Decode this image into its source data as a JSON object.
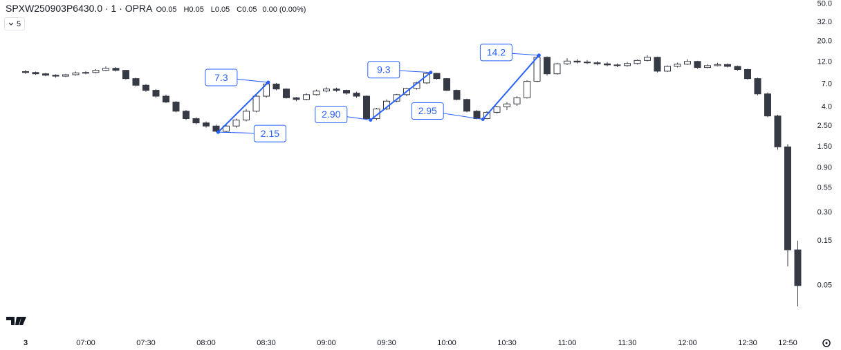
{
  "header": {
    "symbol": "SPXW250903P6430.0 · 1 · OPRA",
    "ohlc_labels": [
      "O",
      "H",
      "L",
      "C"
    ],
    "ohlc": [
      0.05,
      0.05,
      0.05,
      0.05
    ],
    "change": "0.00 (0.00%)",
    "interval": 5
  },
  "chart_data": {
    "type": "candlestick",
    "log_scale": true,
    "up_color": "#ffffff",
    "down_color": "#363a45",
    "edge_color": "#363a45",
    "annotation_color": "#2962ff",
    "xlim": [
      "06:30",
      "13:00"
    ],
    "ylim": [
      0.016,
      55
    ],
    "xticks": [
      {
        "value": "06:30",
        "label": "3"
      },
      "07:00",
      "07:30",
      "08:00",
      "08:30",
      "09:00",
      "09:30",
      "10:00",
      "10:30",
      "11:00",
      "11:30",
      "12:00",
      "12:30",
      "12:50"
    ],
    "yticks": [
      {
        "value": 50,
        "label": "50.0"
      },
      {
        "value": 32,
        "label": "32.0"
      },
      {
        "value": 20,
        "label": "20.0"
      },
      {
        "value": 12,
        "label": "12.0"
      },
      {
        "value": 7,
        "label": "7.0"
      },
      {
        "value": 4,
        "label": "4.0"
      },
      {
        "value": 2.5,
        "label": "2.50"
      },
      {
        "value": 1.5,
        "label": "1.50"
      },
      {
        "value": 0.9,
        "label": "0.90"
      },
      0.55,
      {
        "value": 0.3,
        "label": "0.30"
      },
      0.15,
      0.05
    ],
    "x": [
      "06:30",
      "06:35",
      "06:40",
      "06:45",
      "06:50",
      "06:55",
      "07:00",
      "07:05",
      "07:10",
      "07:15",
      "07:20",
      "07:25",
      "07:30",
      "07:35",
      "07:40",
      "07:45",
      "07:50",
      "07:55",
      "08:00",
      "08:05",
      "08:10",
      "08:15",
      "08:20",
      "08:25",
      "08:30",
      "08:35",
      "08:40",
      "08:45",
      "08:50",
      "08:55",
      "09:00",
      "09:05",
      "09:10",
      "09:15",
      "09:20",
      "09:25",
      "09:30",
      "09:35",
      "09:40",
      "09:45",
      "09:50",
      "09:55",
      "10:00",
      "10:05",
      "10:10",
      "10:15",
      "10:20",
      "10:25",
      "10:30",
      "10:35",
      "10:40",
      "10:45",
      "10:50",
      "10:55",
      "11:00",
      "11:05",
      "11:10",
      "11:15",
      "11:20",
      "11:25",
      "11:30",
      "11:35",
      "11:40",
      "11:45",
      "11:50",
      "11:55",
      "12:00",
      "12:05",
      "12:10",
      "12:15",
      "12:20",
      "12:25",
      "12:30",
      "12:35",
      "12:40",
      "12:45",
      "12:50",
      "12:55"
    ],
    "ohlc": [
      [
        9.5,
        9.9,
        9.0,
        9.3
      ],
      [
        9.3,
        9.5,
        8.8,
        9.0
      ],
      [
        9.0,
        9.2,
        8.5,
        8.7
      ],
      [
        8.7,
        8.9,
        8.2,
        8.5
      ],
      [
        8.5,
        9.0,
        8.3,
        8.8
      ],
      [
        8.8,
        9.5,
        8.6,
        9.2
      ],
      [
        9.2,
        9.6,
        8.9,
        9.3
      ],
      [
        9.3,
        10.1,
        9.1,
        9.8
      ],
      [
        9.8,
        10.8,
        9.6,
        10.3
      ],
      [
        10.3,
        10.6,
        9.5,
        9.8
      ],
      [
        9.8,
        9.9,
        7.8,
        8.0
      ],
      [
        8.0,
        8.2,
        6.6,
        6.8
      ],
      [
        6.8,
        7.0,
        5.8,
        6.0
      ],
      [
        6.0,
        6.2,
        5.0,
        5.2
      ],
      [
        5.2,
        5.4,
        4.4,
        4.5
      ],
      [
        4.5,
        4.6,
        3.5,
        3.6
      ],
      [
        3.6,
        3.7,
        2.9,
        3.0
      ],
      [
        3.0,
        3.1,
        2.6,
        2.7
      ],
      [
        2.7,
        2.8,
        2.4,
        2.5
      ],
      [
        2.5,
        2.6,
        2.15,
        2.2
      ],
      [
        2.2,
        2.6,
        2.15,
        2.5
      ],
      [
        2.5,
        3.0,
        2.4,
        2.9
      ],
      [
        2.9,
        3.8,
        2.8,
        3.6
      ],
      [
        3.6,
        5.4,
        3.5,
        5.2
      ],
      [
        5.2,
        7.3,
        5.0,
        7.0
      ],
      [
        7.0,
        7.2,
        6.0,
        6.2
      ],
      [
        6.2,
        6.3,
        4.9,
        5.0
      ],
      [
        5.0,
        5.1,
        4.6,
        4.8
      ],
      [
        4.8,
        5.6,
        4.7,
        5.4
      ],
      [
        5.4,
        6.1,
        5.3,
        5.9
      ],
      [
        5.9,
        6.5,
        5.7,
        6.2
      ],
      [
        6.2,
        6.4,
        5.8,
        6.0
      ],
      [
        6.0,
        6.1,
        5.4,
        5.6
      ],
      [
        5.6,
        5.8,
        5.0,
        5.2
      ],
      [
        5.2,
        5.3,
        2.9,
        3.0
      ],
      [
        3.0,
        3.9,
        2.9,
        3.8
      ],
      [
        3.8,
        4.8,
        3.7,
        4.6
      ],
      [
        4.6,
        5.5,
        4.5,
        5.4
      ],
      [
        5.4,
        6.4,
        5.2,
        6.3
      ],
      [
        6.3,
        7.4,
        6.1,
        7.2
      ],
      [
        7.2,
        9.3,
        7.0,
        9.1
      ],
      [
        9.1,
        9.2,
        7.8,
        8.0
      ],
      [
        8.0,
        8.1,
        5.9,
        6.0
      ],
      [
        6.0,
        6.1,
        4.7,
        4.8
      ],
      [
        4.8,
        4.9,
        3.5,
        3.6
      ],
      [
        3.6,
        3.7,
        2.95,
        3.0
      ],
      [
        3.0,
        3.6,
        2.95,
        3.5
      ],
      [
        3.5,
        4.1,
        3.4,
        4.0
      ],
      [
        4.0,
        4.5,
        3.7,
        4.3
      ],
      [
        4.3,
        5.2,
        4.1,
        5.0
      ],
      [
        5.0,
        7.7,
        4.9,
        7.5
      ],
      [
        7.5,
        14.2,
        7.3,
        13.5
      ],
      [
        13.5,
        13.8,
        8.6,
        9.0
      ],
      [
        9.0,
        11.8,
        8.8,
        11.5
      ],
      [
        11.5,
        13.2,
        11.2,
        12.3
      ],
      [
        12.3,
        12.9,
        11.6,
        12.0
      ],
      [
        12.0,
        12.6,
        11.4,
        11.8
      ],
      [
        11.8,
        12.3,
        11.1,
        11.5
      ],
      [
        11.5,
        12.0,
        10.8,
        11.2
      ],
      [
        11.2,
        11.6,
        10.6,
        11.0
      ],
      [
        11.0,
        12.0,
        10.7,
        11.6
      ],
      [
        11.6,
        12.8,
        11.3,
        12.5
      ],
      [
        12.5,
        14.2,
        12.2,
        13.5
      ],
      [
        13.5,
        13.7,
        9.3,
        9.6
      ],
      [
        9.6,
        11.1,
        9.4,
        10.8
      ],
      [
        10.8,
        11.8,
        10.5,
        11.4
      ],
      [
        11.4,
        12.9,
        11.2,
        12.2
      ],
      [
        12.2,
        12.4,
        10.2,
        10.5
      ],
      [
        10.5,
        11.4,
        10.3,
        11.0
      ],
      [
        11.0,
        11.8,
        10.8,
        11.3
      ],
      [
        11.3,
        11.6,
        10.5,
        10.8
      ],
      [
        10.8,
        11.0,
        9.7,
        10.0
      ],
      [
        10.0,
        10.2,
        7.8,
        8.0
      ],
      [
        8.0,
        8.2,
        5.3,
        5.5
      ],
      [
        5.5,
        5.7,
        3.1,
        3.2
      ],
      [
        3.2,
        3.3,
        1.4,
        1.5
      ],
      [
        1.5,
        1.6,
        0.08,
        0.12
      ],
      [
        0.12,
        0.15,
        0.03,
        0.05
      ]
    ],
    "annotations": [
      {
        "x": "08:06",
        "value": 2.15
      },
      {
        "x": "08:31",
        "value": 7.3
      },
      {
        "x": "09:22",
        "value": {
          "value": 2.9,
          "label": "2.90"
        }
      },
      {
        "x": "09:52",
        "value": 9.3
      },
      {
        "x": "10:18",
        "value": {
          "value": 2.95,
          "label": "2.95"
        }
      },
      {
        "x": "10:46",
        "value": 14.2
      }
    ]
  }
}
